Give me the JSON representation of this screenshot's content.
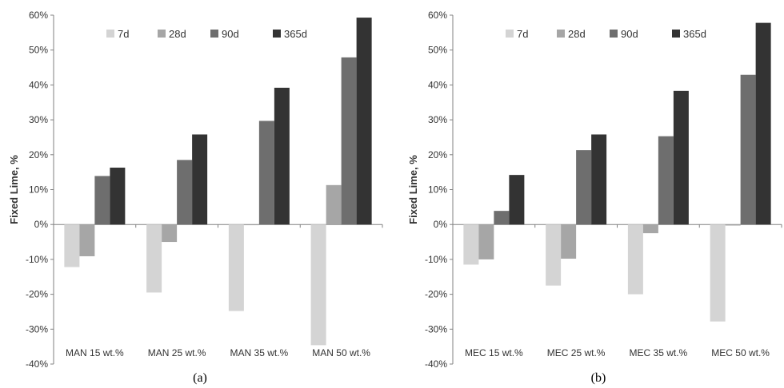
{
  "chart_data": [
    {
      "type": "bar",
      "caption": "(a)",
      "ylabel": "Fixed Lime, %",
      "ylim": [
        -40,
        60
      ],
      "yticks": [
        "-40%",
        "-30%",
        "-20%",
        "-10%",
        "0%",
        "10%",
        "20%",
        "30%",
        "40%",
        "50%",
        "60%"
      ],
      "categories": [
        "MAN 15 wt.%",
        "MAN 25 wt.%",
        "MAN 35 wt.%",
        "MAN 50 wt.%"
      ],
      "legend_position": "top",
      "series": [
        {
          "name": "7d",
          "color": "#d4d4d4",
          "values": [
            -12.2,
            -19.5,
            -24.8,
            -34.6
          ]
        },
        {
          "name": "28d",
          "color": "#a6a6a6",
          "values": [
            -9.1,
            -5.0,
            -0.2,
            11.3
          ]
        },
        {
          "name": "90d",
          "color": "#6e6e6e",
          "values": [
            13.9,
            18.5,
            29.7,
            47.9
          ]
        },
        {
          "name": "365d",
          "color": "#333333",
          "values": [
            16.3,
            25.8,
            39.2,
            59.3
          ]
        }
      ]
    },
    {
      "type": "bar",
      "caption": "(b)",
      "ylabel": "Fixed Lime, %",
      "ylim": [
        -40,
        60
      ],
      "yticks": [
        "-40%",
        "-30%",
        "-20%",
        "-10%",
        "0%",
        "10%",
        "20%",
        "30%",
        "40%",
        "50%",
        "60%"
      ],
      "categories": [
        "MEC 15 wt.%",
        "MEC 25 wt.%",
        "MEC 35 wt.%",
        "MEC 50 wt.%"
      ],
      "legend_position": "top",
      "series": [
        {
          "name": "7d",
          "color": "#d4d4d4",
          "values": [
            -11.5,
            -17.5,
            -20.0,
            -27.8
          ]
        },
        {
          "name": "28d",
          "color": "#a6a6a6",
          "values": [
            -10.0,
            -9.8,
            -2.5,
            -0.3
          ]
        },
        {
          "name": "90d",
          "color": "#6e6e6e",
          "values": [
            3.9,
            21.3,
            25.3,
            42.9
          ]
        },
        {
          "name": "365d",
          "color": "#333333",
          "values": [
            14.2,
            25.8,
            38.3,
            57.8
          ]
        }
      ]
    }
  ]
}
